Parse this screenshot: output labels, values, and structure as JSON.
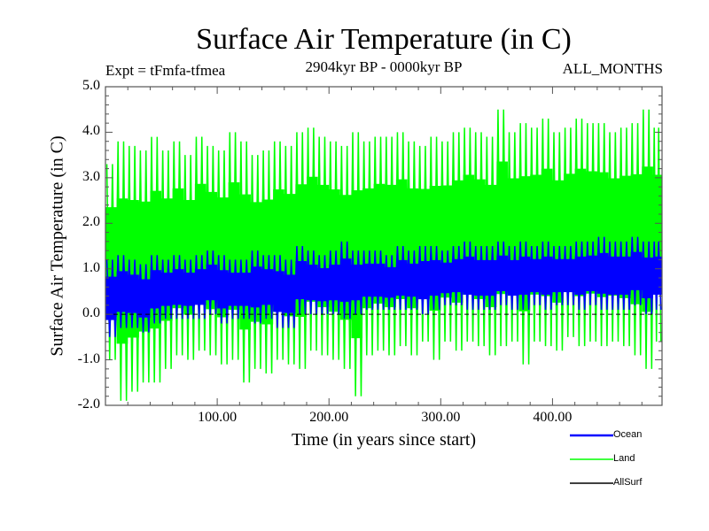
{
  "chart_data": {
    "type": "line",
    "title": "Surface Air Temperature (in C)",
    "subtitle_left": "Expt = tFmfa-tfmea",
    "subtitle_center": "2904kyr BP - 0000kyr BP",
    "subtitle_right": "ALL_MONTHS",
    "xlabel": "Time (in years since start)",
    "ylabel": "Surface Air Temperature (in C)",
    "xlim": [
      0,
      498
    ],
    "ylim": [
      -2.0,
      5.0
    ],
    "xticks": [
      100,
      200,
      300,
      400
    ],
    "xtick_labels": [
      "100.00",
      "200.00",
      "300.00",
      "400.00"
    ],
    "yticks": [
      -2,
      -1,
      0,
      1,
      2,
      3,
      4,
      5
    ],
    "ytick_labels": [
      "-2.0",
      "-1.0",
      "0.0",
      "1.0",
      "2.0",
      "3.0",
      "4.0",
      "5.0"
    ],
    "reference_line": 0.0,
    "legend_placement": "bottom-right",
    "note": "values summarized as 10-year bin envelopes (min/max)",
    "x_bins": [
      0,
      10,
      20,
      30,
      40,
      50,
      60,
      70,
      80,
      90,
      100,
      110,
      120,
      130,
      140,
      150,
      160,
      170,
      180,
      190,
      200,
      210,
      220,
      230,
      240,
      250,
      260,
      270,
      280,
      290,
      300,
      310,
      320,
      330,
      340,
      350,
      360,
      370,
      380,
      390,
      400,
      410,
      420,
      430,
      440,
      450,
      460,
      470,
      480,
      490
    ],
    "series": [
      {
        "name": "Land",
        "color": "#00ff00",
        "max": [
          3.3,
          3.8,
          3.7,
          3.6,
          3.9,
          3.6,
          3.8,
          3.5,
          3.9,
          3.7,
          3.6,
          4.0,
          3.8,
          3.5,
          3.6,
          3.8,
          3.7,
          4.0,
          4.1,
          3.9,
          3.8,
          3.7,
          4.0,
          3.8,
          3.9,
          3.9,
          4.0,
          3.8,
          3.7,
          3.9,
          3.8,
          4.0,
          4.1,
          4.0,
          3.9,
          4.5,
          4.0,
          4.2,
          4.1,
          4.3,
          4.0,
          4.1,
          4.3,
          4.2,
          4.2,
          4.0,
          4.1,
          4.2,
          4.5,
          4.1
        ],
        "min": [
          -1.0,
          -1.9,
          -1.7,
          -1.5,
          -1.5,
          -1.2,
          -0.9,
          -1.0,
          -0.8,
          -0.9,
          -1.1,
          -1.0,
          -1.5,
          -1.2,
          -1.3,
          -1.0,
          -1.1,
          -1.2,
          -0.8,
          -0.9,
          -1.0,
          -1.2,
          -1.8,
          -0.9,
          -0.8,
          -0.9,
          -0.7,
          -0.9,
          -0.6,
          -1.0,
          -0.6,
          -0.8,
          -0.6,
          -0.7,
          -0.9,
          -0.7,
          -0.6,
          -1.1,
          -0.6,
          -0.7,
          -0.8,
          -0.5,
          -0.7,
          -0.6,
          -0.7,
          -0.6,
          -0.7,
          -0.9,
          -1.2,
          -0.6
        ]
      },
      {
        "name": "Ocean",
        "color": "#0000ff",
        "max": [
          1.2,
          1.3,
          1.2,
          1.1,
          1.3,
          1.2,
          1.3,
          1.2,
          1.3,
          1.4,
          1.3,
          1.2,
          1.2,
          1.4,
          1.3,
          1.3,
          1.2,
          1.5,
          1.4,
          1.3,
          1.4,
          1.6,
          1.4,
          1.4,
          1.4,
          1.3,
          1.5,
          1.4,
          1.5,
          1.5,
          1.4,
          1.5,
          1.6,
          1.5,
          1.5,
          1.6,
          1.5,
          1.6,
          1.5,
          1.6,
          1.5,
          1.5,
          1.6,
          1.6,
          1.7,
          1.6,
          1.6,
          1.7,
          1.6,
          1.6
        ],
        "min": [
          -0.5,
          -0.3,
          -0.3,
          -0.4,
          -0.2,
          -0.1,
          -0.1,
          -0.1,
          -0.1,
          0.0,
          -0.2,
          -0.1,
          -0.1,
          -0.2,
          -0.1,
          -0.3,
          -0.3,
          0.0,
          0.0,
          0.0,
          0.0,
          -0.1,
          0.0,
          0.1,
          0.1,
          0.1,
          0.1,
          0.1,
          0.0,
          0.1,
          0.2,
          0.2,
          0.1,
          0.1,
          0.1,
          0.2,
          0.1,
          0.1,
          0.2,
          0.1,
          0.2,
          0.2,
          0.1,
          0.2,
          0.1,
          0.1,
          0.1,
          0.2,
          0.0,
          0.1
        ]
      }
    ],
    "legend": [
      {
        "label": "Ocean",
        "color": "#0000ff"
      },
      {
        "label": "Land",
        "color": "#00ff00"
      },
      {
        "label": "AllSurf",
        "color": "#000000"
      }
    ]
  }
}
